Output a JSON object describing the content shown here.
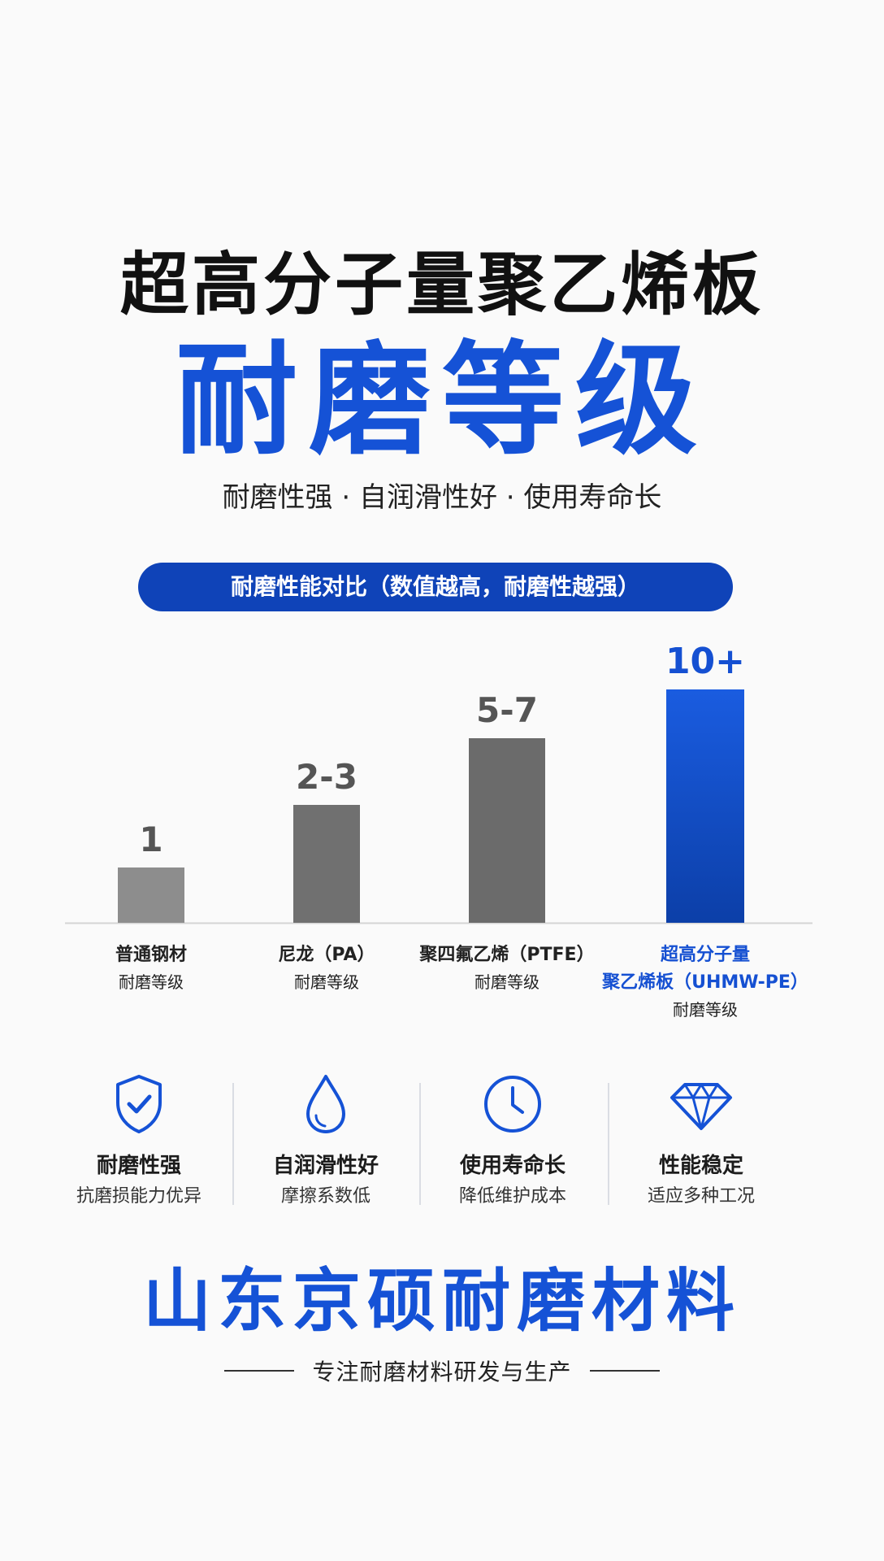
{
  "header": {
    "title_top": "超高分子量聚乙烯板",
    "title_main": "耐磨等级",
    "subtitle": "耐磨性强 · 自润滑性好 · 使用寿命长"
  },
  "banner": "耐磨性能对比（数值越高，耐磨性越强）",
  "chart_data": {
    "type": "bar",
    "title": "",
    "categories": [
      "普通钢材",
      "尼龙（PA）",
      "聚四氟乙烯（PTFE）",
      "超高分子量聚乙烯板（UHMW-PE）"
    ],
    "category_lines": [
      [
        "普通钢材",
        "耐磨等级"
      ],
      [
        "尼龙（PA）",
        "耐磨等级"
      ],
      [
        "聚四氟乙烯（PTFE）",
        "耐磨等级"
      ],
      [
        "超高分子量",
        "聚乙烯板（UHMW-PE）",
        "耐磨等级"
      ]
    ],
    "values": [
      1,
      2.5,
      6,
      10
    ],
    "data_labels": [
      "1",
      "2-3",
      "5-7",
      "10+"
    ],
    "highlight_index": 3,
    "colors": {
      "bars": [
        "#8d8d8d",
        "#707070",
        "#6b6b6b",
        "#1550d2"
      ],
      "highlight_text": "#1550d2",
      "baseline": "#d4d4d4"
    },
    "ylim": [
      0,
      10
    ],
    "grid": false,
    "legend": "none"
  },
  "features": [
    {
      "icon": "shield-check-icon",
      "title": "耐磨性强",
      "sub": "抗磨损能力优异"
    },
    {
      "icon": "water-drop-icon",
      "title": "自润滑性好",
      "sub": "摩擦系数低"
    },
    {
      "icon": "clock-icon",
      "title": "使用寿命长",
      "sub": "降低维护成本"
    },
    {
      "icon": "diamond-icon",
      "title": "性能稳定",
      "sub": "适应多种工况"
    }
  ],
  "footer": {
    "company": "山东京硕耐磨材料",
    "tagline": "专注耐磨材料研发与生产"
  },
  "accent_color": "#1552d6"
}
